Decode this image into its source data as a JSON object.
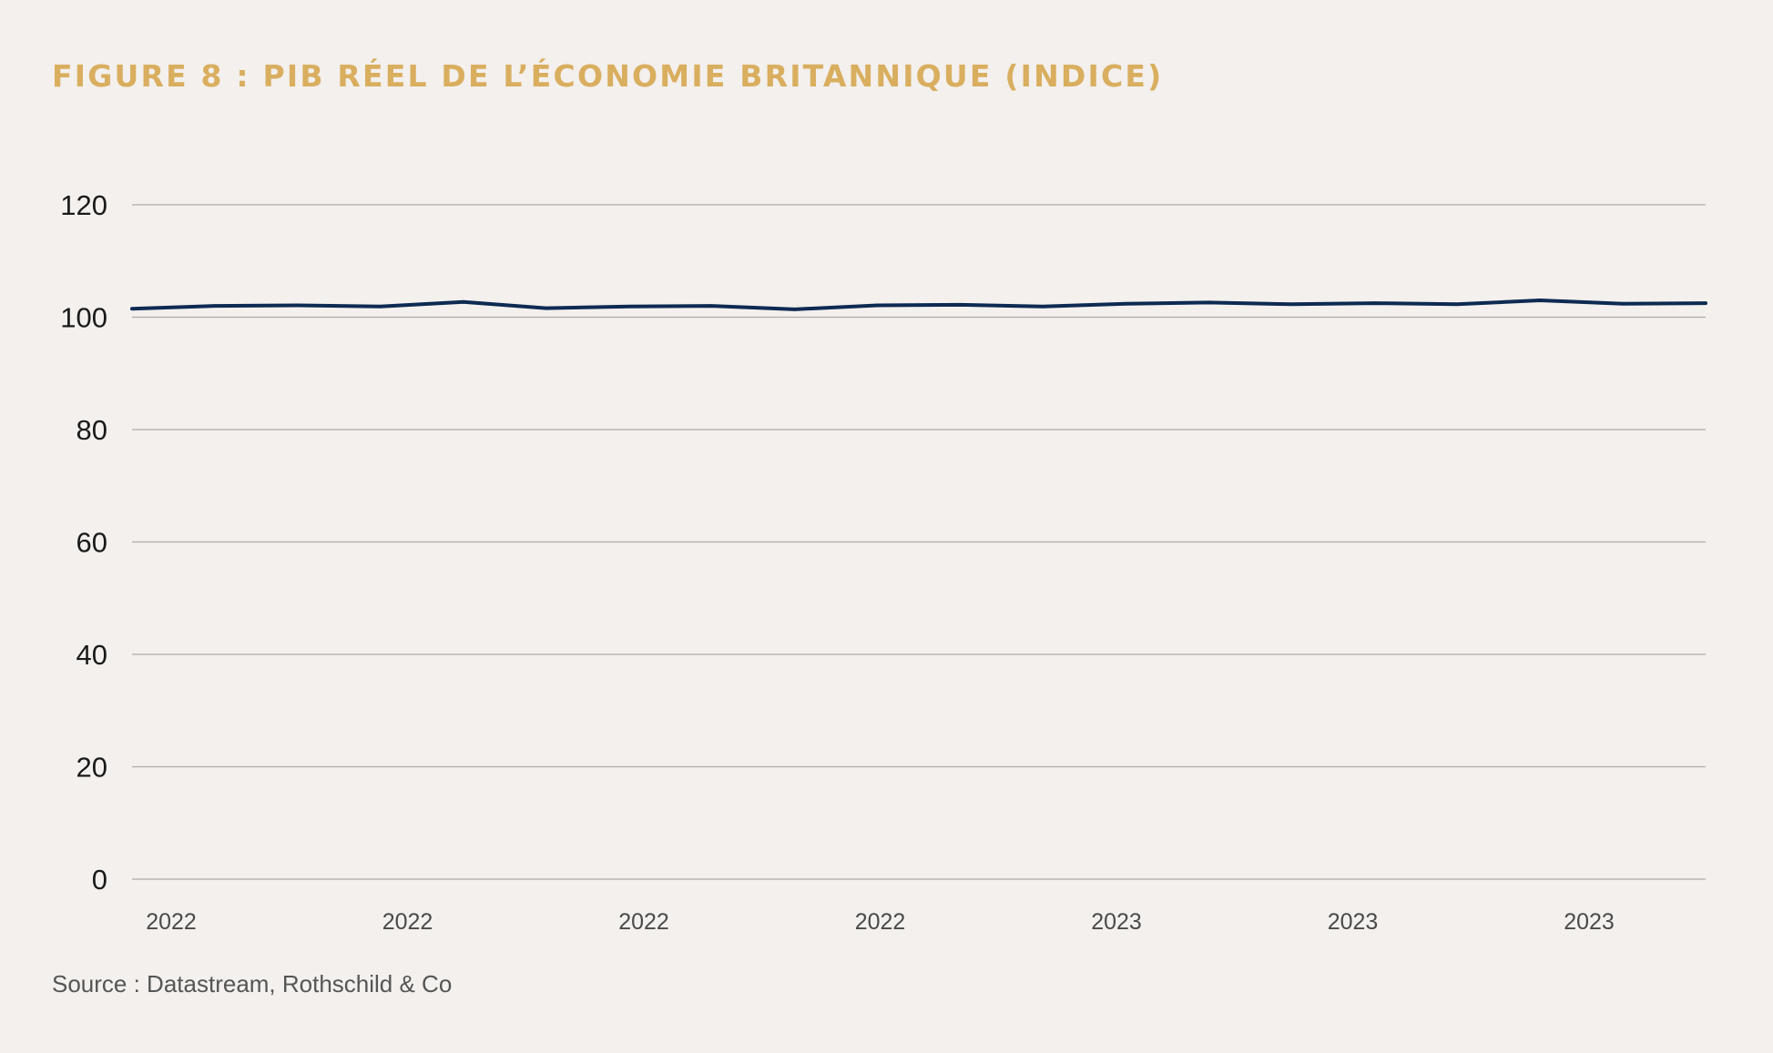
{
  "chart_data": {
    "type": "line",
    "title": "FIGURE 8 : PIB RÉEL DE L’ÉCONOMIE BRITANNIQUE (INDICE)",
    "xlabel": "",
    "ylabel": "",
    "ylim": [
      0,
      120
    ],
    "yticks": [
      "0",
      "20",
      "40",
      "60",
      "80",
      "100",
      "120"
    ],
    "xtick_labels": [
      "2022",
      "2022",
      "2022",
      "2022",
      "2023",
      "2023",
      "2023"
    ],
    "grid": true,
    "series": [
      {
        "color": "#0d2a52",
        "values": [
          101.5,
          102.0,
          102.1,
          101.9,
          102.7,
          101.6,
          101.9,
          102.0,
          101.4,
          102.1,
          102.2,
          101.9,
          102.4,
          102.6,
          102.3,
          102.5,
          102.3,
          103.0,
          102.4,
          102.5
        ]
      }
    ]
  },
  "source": "Source : Datastream, Rothschild & Co",
  "colors": {
    "background": "#f3f0ed",
    "title": "#d9ae5f",
    "line": "#0d2a52",
    "grid": "#b3aaa6"
  }
}
